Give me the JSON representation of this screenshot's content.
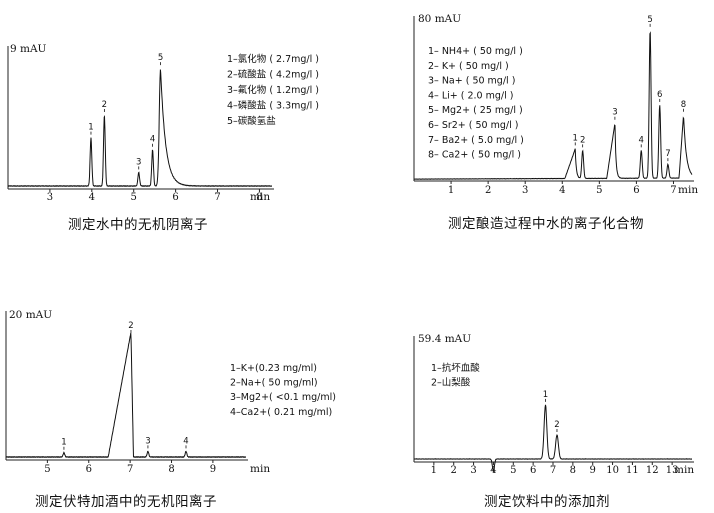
{
  "charts": [
    {
      "id": "anions",
      "ylabel": "9 mAU",
      "xunit": "min",
      "caption": "测定水中的无机阴离子",
      "xticks": [
        "3",
        "4",
        "5",
        "6",
        "7",
        "8"
      ],
      "legend": [
        "1–氯化物 ( 2.7mg/l )",
        "2–硫酸盐 ( 4.2mg/l )",
        "3–氟化物 ( 1.2mg/l )",
        "4–磷酸盐 ( 3.3mg/l )",
        "5–碳酸氢盐"
      ],
      "peak_labels": [
        "1",
        "2",
        "3",
        "4",
        "5"
      ]
    },
    {
      "id": "brewing",
      "ylabel": "80 mAU",
      "xunit": "min",
      "caption": "测定酿造过程中水的离子化合物",
      "xticks": [
        "1",
        "2",
        "3",
        "4",
        "5",
        "6",
        "7"
      ],
      "legend": [
        "1– NH4+ ( 50 mg/l )",
        "2– K+ ( 50 mg/l )",
        "3– Na+ ( 50 mg/l )",
        "4– Li+ ( 2.0 mg/l )",
        "5– Mg2+ ( 25 mg/l )",
        "6– Sr2+ ( 50 mg/l )",
        "7– Ba2+ ( 5.0 mg/l )",
        "8– Ca2+ ( 50 mg/l )"
      ],
      "peak_labels": [
        "1",
        "2",
        "3",
        "4",
        "5",
        "6",
        "7",
        "8"
      ]
    },
    {
      "id": "vodka",
      "ylabel": "20 mAU",
      "xunit": "min",
      "caption": "测定伏特加酒中的无机阳离子",
      "xticks": [
        "5",
        "6",
        "7",
        "8",
        "9"
      ],
      "legend": [
        "1–K+(0.23 mg/ml)",
        "2–Na+( 50 mg/ml)",
        "3–Mg2+( <0.1 mg/ml)",
        "4–Ca2+( 0.21 mg/ml)"
      ],
      "peak_labels": [
        "1",
        "2",
        "3",
        "4"
      ]
    },
    {
      "id": "beverage",
      "ylabel": "59.4 mAU",
      "xunit": "min",
      "caption": "测定饮料中的添加剂",
      "xticks": [
        "1",
        "2",
        "3",
        "4",
        "5",
        "6",
        "7",
        "8",
        "9",
        "10",
        "11",
        "12",
        "13"
      ],
      "legend": [
        "1–抗坏血酸",
        "2–山梨酸"
      ],
      "peak_labels": [
        "1",
        "2"
      ]
    }
  ],
  "chart_data": [
    {
      "type": "line",
      "title": "测定水中的无机阴离子",
      "ylabel": "9 mAU",
      "xlabel": "min",
      "xlim": [
        2,
        8.3
      ],
      "ylim": [
        0,
        9
      ],
      "peaks": [
        {
          "label": "1",
          "name": "氯化物",
          "t": 3.98,
          "h": 3.2
        },
        {
          "label": "2",
          "name": "硫酸盐",
          "t": 4.3,
          "h": 4.7
        },
        {
          "label": "3",
          "name": "氟化物",
          "t": 5.12,
          "h": 0.9
        },
        {
          "label": "4",
          "name": "磷酸盐",
          "t": 5.45,
          "h": 2.4
        },
        {
          "label": "5",
          "name": "碳酸氢盐",
          "t": 5.64,
          "h": 7.8
        }
      ]
    },
    {
      "type": "line",
      "title": "测定酿造过程中水的离子化合物",
      "ylabel": "80 mAU",
      "xlabel": "min",
      "xlim": [
        0,
        7.5
      ],
      "ylim": [
        0,
        80
      ],
      "peaks": [
        {
          "label": "1",
          "name": "NH4+",
          "t": 4.35,
          "h": 15
        },
        {
          "label": "2",
          "name": "K+",
          "t": 4.55,
          "h": 14
        },
        {
          "label": "3",
          "name": "Na+",
          "t": 5.42,
          "h": 28
        },
        {
          "label": "4",
          "name": "Li+",
          "t": 6.13,
          "h": 14
        },
        {
          "label": "5",
          "name": "Mg2+",
          "t": 6.37,
          "h": 75
        },
        {
          "label": "6",
          "name": "Sr2+",
          "t": 6.63,
          "h": 37
        },
        {
          "label": "7",
          "name": "Ba2+",
          "t": 6.85,
          "h": 7
        },
        {
          "label": "8",
          "name": "Ca2+",
          "t": 7.27,
          "h": 32
        }
      ]
    },
    {
      "type": "line",
      "title": "测定伏特加酒中的无机阳离子",
      "ylabel": "20 mAU",
      "xlabel": "min",
      "xlim": [
        4,
        9.8
      ],
      "ylim": [
        0,
        20
      ],
      "peaks": [
        {
          "label": "1",
          "name": "K+",
          "t": 5.4,
          "h": 0.6
        },
        {
          "label": "2",
          "name": "Na+",
          "t": 7.02,
          "h": 17.6
        },
        {
          "label": "3",
          "name": "Mg2+",
          "t": 7.43,
          "h": 0.8
        },
        {
          "label": "4",
          "name": "Ca2+",
          "t": 8.35,
          "h": 0.8
        }
      ]
    },
    {
      "type": "line",
      "title": "测定饮料中的添加剂",
      "ylabel": "59.4 mAU",
      "xlabel": "min",
      "xlim": [
        0,
        14
      ],
      "ylim": [
        0,
        59.4
      ],
      "peaks": [
        {
          "label": "1",
          "name": "抗坏血酸",
          "t": 6.62,
          "h": 27
        },
        {
          "label": "2",
          "name": "山梨酸",
          "t": 7.2,
          "h": 12
        }
      ]
    }
  ]
}
